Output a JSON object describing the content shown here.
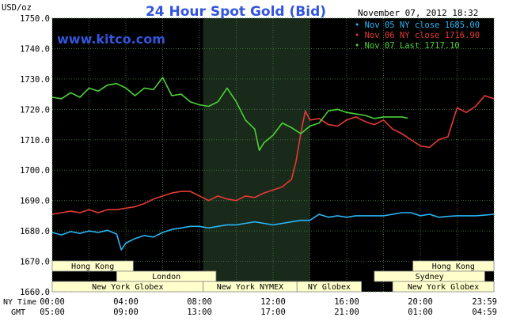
{
  "chart_data": {
    "type": "line",
    "title": "24 Hour Spot Gold (Bid)",
    "unit_label": "USD/oz",
    "watermark": "www.kitco.com",
    "timestamp": "November 07, 2012 18:32",
    "y_range": [
      1660,
      1750
    ],
    "y_ticks": [
      "1750.0",
      "1740.0",
      "1730.0",
      "1720.0",
      "1710.0",
      "1700.0",
      "1690.0",
      "1680.0",
      "1670.0",
      "1660.0"
    ],
    "x_range_hours": [
      0,
      24
    ],
    "ny_time_label": "NY Time",
    "gmt_label": "GMT",
    "ny_time_ticks": [
      "00:00",
      "04:00",
      "08:00",
      "12:00",
      "16:00",
      "20:00",
      "23:59"
    ],
    "gmt_ticks": [
      "05:00",
      "09:00",
      "13:00",
      "17:00",
      "21:00",
      "01:00",
      "04:59"
    ],
    "shaded_band_hours": [
      8.2,
      14.0
    ],
    "legend_position": "top-right",
    "grid": true,
    "colors": {
      "background": "#000000",
      "grid": "#3a6a3a",
      "shade": "#1a2a1a",
      "title": "#3355dd",
      "watermark": "#3355dd",
      "text": "#000000"
    },
    "series": [
      {
        "name": "Nov 05 NY close 1685.00",
        "color": "#29b6f6",
        "x": [
          0,
          0.5,
          1,
          1.5,
          2,
          2.5,
          3,
          3.5,
          3.75,
          4,
          4.5,
          5,
          5.5,
          6,
          6.5,
          7,
          7.5,
          8,
          8.5,
          9,
          9.5,
          10,
          10.5,
          11,
          11.5,
          12,
          12.5,
          13,
          13.5,
          14,
          14.5,
          15,
          15.5,
          16,
          16.5,
          17,
          17.5,
          18,
          18.5,
          19,
          19.5,
          20,
          20.5,
          21,
          21.5,
          22,
          22.5,
          23,
          23.5,
          24
        ],
        "y": [
          1679.5,
          1678.7,
          1679.8,
          1679.2,
          1680.0,
          1679.5,
          1680.2,
          1679.0,
          1673.8,
          1676.0,
          1677.5,
          1678.5,
          1678.0,
          1679.5,
          1680.5,
          1681.0,
          1681.5,
          1681.5,
          1681.0,
          1681.5,
          1682.0,
          1682.0,
          1682.5,
          1683.0,
          1682.5,
          1682.0,
          1682.5,
          1683.0,
          1683.5,
          1683.5,
          1685.5,
          1684.5,
          1685.0,
          1684.5,
          1685.0,
          1685.0,
          1685.0,
          1685.0,
          1685.5,
          1686.0,
          1686.0,
          1685.0,
          1685.5,
          1684.5,
          1684.8,
          1685.0,
          1685.0,
          1685.0,
          1685.2,
          1685.5
        ]
      },
      {
        "name": "Nov 06 NY close 1716.90",
        "color": "#e53935",
        "x": [
          0,
          0.5,
          1,
          1.5,
          2,
          2.5,
          3,
          3.5,
          4,
          4.5,
          5,
          5.5,
          6,
          6.5,
          7,
          7.5,
          8,
          8.5,
          9,
          9.5,
          10,
          10.5,
          11,
          11.5,
          12,
          12.5,
          13,
          13.25,
          13.5,
          13.75,
          14,
          14.5,
          15,
          15.5,
          16,
          16.5,
          17,
          17.5,
          18,
          18.5,
          19,
          19.5,
          20,
          20.5,
          21,
          21.5,
          22,
          22.5,
          23,
          23.5,
          24
        ],
        "y": [
          1685.5,
          1686.0,
          1686.5,
          1686.0,
          1687.0,
          1686.0,
          1687.0,
          1687.0,
          1687.5,
          1688.0,
          1689.0,
          1690.5,
          1691.5,
          1692.5,
          1693.0,
          1693.0,
          1691.5,
          1690.0,
          1691.5,
          1690.5,
          1690.0,
          1691.5,
          1691.0,
          1692.5,
          1693.5,
          1694.5,
          1697.0,
          1703.0,
          1712.0,
          1719.5,
          1716.5,
          1717.0,
          1715.0,
          1714.5,
          1716.5,
          1717.5,
          1716.0,
          1715.0,
          1716.5,
          1713.5,
          1712.0,
          1710.0,
          1708.0,
          1707.5,
          1710.0,
          1711.0,
          1720.5,
          1719.0,
          1721.0,
          1724.5,
          1723.5
        ]
      },
      {
        "name": "Nov 07 Last 1717.10",
        "color": "#4cd137",
        "x": [
          0,
          0.5,
          1,
          1.5,
          2,
          2.5,
          3,
          3.5,
          4,
          4.5,
          5,
          5.5,
          6,
          6.5,
          7,
          7.5,
          8,
          8.5,
          9,
          9.5,
          10,
          10.5,
          11,
          11.25,
          11.5,
          12,
          12.5,
          13,
          13.5,
          14,
          14.5,
          15,
          15.5,
          16,
          16.5,
          17,
          17.5,
          18,
          18.5,
          19,
          19.32
        ],
        "y": [
          1724.0,
          1723.5,
          1725.5,
          1724.0,
          1727.0,
          1726.0,
          1728.0,
          1728.5,
          1727.0,
          1724.5,
          1727.0,
          1726.5,
          1730.5,
          1724.5,
          1725.0,
          1722.5,
          1721.5,
          1721.0,
          1722.5,
          1727.0,
          1722.5,
          1716.5,
          1713.5,
          1706.5,
          1709.0,
          1711.5,
          1715.5,
          1714.0,
          1712.0,
          1714.5,
          1715.5,
          1719.5,
          1720.0,
          1719.0,
          1718.5,
          1718.0,
          1717.0,
          1717.5,
          1717.5,
          1717.5,
          1717.1
        ]
      }
    ],
    "markets": [
      {
        "name": "Hong Kong",
        "row": 0,
        "start": 0,
        "end": 4.4
      },
      {
        "name": "Hong Kong",
        "row": 0,
        "start": 19.6,
        "end": 24
      },
      {
        "name": "London",
        "row": 1,
        "start": 3.5,
        "end": 8.9
      },
      {
        "name": "Sydney",
        "row": 1,
        "start": 17.5,
        "end": 23.5
      },
      {
        "name": "New York Globex",
        "row": 2,
        "start": 0,
        "end": 8.2
      },
      {
        "name": "New York NYMEX",
        "row": 2,
        "start": 8.2,
        "end": 13.3
      },
      {
        "name": "NY Globex",
        "row": 2,
        "start": 13.3,
        "end": 16.8
      },
      {
        "name": "New York Globex",
        "row": 2,
        "start": 18.5,
        "end": 24
      }
    ]
  }
}
